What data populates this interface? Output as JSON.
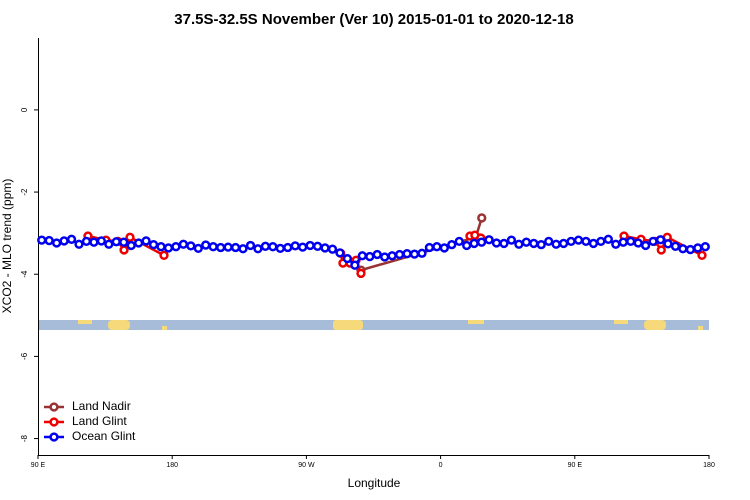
{
  "chart_data": {
    "type": "line",
    "title": "37.5S-32.5S November (Ver 10)   2015-01-01 to 2020-12-18",
    "xlabel": "Longitude",
    "ylabel": "XCO2 - MLO trend (ppm)",
    "xlim": [
      90,
      540
    ],
    "ylim": [
      -8.4,
      1.75
    ],
    "xticks": [
      {
        "value": 90,
        "label": "90 E"
      },
      180,
      {
        "value": 270,
        "label": "90 W"
      },
      {
        "value": 360,
        "label": "0"
      },
      {
        "value": 450,
        "label": "90 E"
      },
      {
        "value": 540,
        "label": "180"
      }
    ],
    "yticks": [
      0,
      -2,
      -4,
      -6,
      -8
    ],
    "legend": "bottomleft",
    "series": [
      {
        "name": "Land Nadir",
        "color": "#993333",
        "x": [
          306.6,
          383.6,
          387.6
        ],
        "values": [
          -3.9,
          -3.1,
          -2.63
        ]
      },
      {
        "name": "Land Glint",
        "color": "#ee0000",
        "x": [
          123.5,
          135.6,
          143.6,
          147.7,
          151.7,
          174.5,
          230,
          293,
          294.5,
          299.2,
          303.3,
          306.6,
          340,
          379.7,
          383,
          387,
          440,
          483,
          494.4,
          503.8,
          508,
          512,
          535.3
        ],
        "values": [
          -3.07,
          -3.17,
          -3.2,
          -3.41,
          -3.1,
          -3.54,
          null,
          -3.49,
          -3.73,
          -3.73,
          -3.66,
          -3.98,
          null,
          -3.07,
          -3.05,
          -3.12,
          null,
          -3.07,
          -3.15,
          -3.2,
          -3.41,
          -3.1,
          -3.54
        ]
      },
      {
        "name": "Ocean Glint",
        "color": "#0000ee",
        "x": [
          92.5,
          97.5,
          102.5,
          107.5,
          112.5,
          117.5,
          122.5,
          127.5,
          132.5,
          137.5,
          142.5,
          147.5,
          152.5,
          157.5,
          162.5,
          167.5,
          172.5,
          177.5,
          182.5,
          187.5,
          192.5,
          197.5,
          202.5,
          207.5,
          212.5,
          217.5,
          222.5,
          227.5,
          232.5,
          237.5,
          242.5,
          247.5,
          252.5,
          257.5,
          262.5,
          267.5,
          272.5,
          277.5,
          282.5,
          287.5,
          292.5,
          297.5,
          302.5,
          307.5,
          312.5,
          317.5,
          322.5,
          327.5,
          332.5,
          337.5,
          342.5,
          347.5,
          352.5,
          357.5,
          362.5,
          367.5,
          372.5,
          377.5,
          382.5,
          387.5,
          392.5,
          397.5,
          402.5,
          407.5,
          412.5,
          417.5,
          422.5,
          427.5,
          432.5,
          437.5,
          442.5,
          447.5,
          452.5,
          457.5,
          462.5,
          467.5,
          472.5,
          477.5,
          482.5,
          487.5,
          492.5,
          497.5,
          502.5,
          507.5,
          512.5,
          517.5,
          522.5,
          527.5,
          532.5,
          537.5
        ],
        "values": [
          -3.17,
          -3.18,
          -3.24,
          -3.19,
          -3.15,
          -3.27,
          -3.2,
          -3.22,
          -3.19,
          -3.27,
          -3.21,
          -3.22,
          -3.3,
          -3.24,
          -3.19,
          -3.28,
          -3.33,
          -3.36,
          -3.33,
          -3.27,
          -3.31,
          -3.37,
          -3.29,
          -3.33,
          -3.35,
          -3.34,
          -3.35,
          -3.38,
          -3.3,
          -3.38,
          -3.32,
          -3.33,
          -3.37,
          -3.35,
          -3.31,
          -3.34,
          -3.3,
          -3.32,
          -3.36,
          -3.39,
          -3.48,
          -3.62,
          -3.78,
          -3.55,
          -3.57,
          -3.52,
          -3.58,
          -3.55,
          -3.52,
          -3.5,
          -3.51,
          -3.49,
          -3.35,
          -3.33,
          -3.36,
          -3.28,
          -3.2,
          -3.3,
          -3.25,
          -3.22,
          -3.16,
          -3.24,
          -3.25,
          -3.17,
          -3.27,
          -3.22,
          -3.25,
          -3.28,
          -3.2,
          -3.27,
          -3.25,
          -3.2,
          -3.17,
          -3.2,
          -3.25,
          -3.2,
          -3.15,
          -3.27,
          -3.22,
          -3.2,
          -3.24,
          -3.3,
          -3.2,
          -3.16,
          -3.26,
          -3.32,
          -3.38,
          -3.4,
          -3.36,
          -3.33
        ]
      }
    ]
  }
}
